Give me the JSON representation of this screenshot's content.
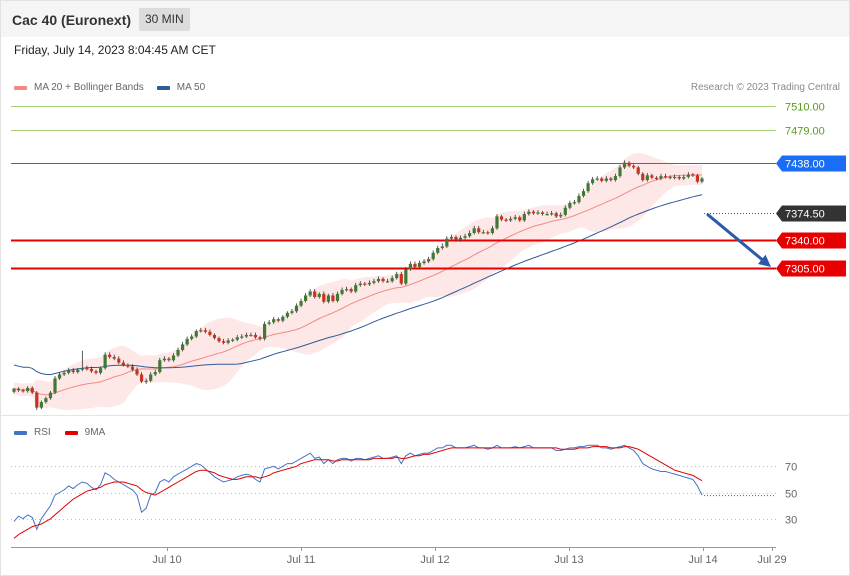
{
  "header": {
    "title": "Cac 40 (Euronext)",
    "timeframe": "30 MIN",
    "datetime": "Friday, July 14, 2023 8:04:45 AM CET"
  },
  "legend": {
    "main": [
      {
        "label": "MA 20 + Bollinger Bands",
        "color": "#f08b84"
      },
      {
        "label": "MA 50",
        "color": "#2e5c99"
      }
    ],
    "rsi": [
      {
        "label": "RSI",
        "color": "#4472c4"
      },
      {
        "label": "9MA",
        "color": "#e00000"
      }
    ]
  },
  "copyright": "Research © 2023 Trading Central",
  "chart_data": [
    {
      "type": "candlestick",
      "ylim": [
        7125,
        7530
      ],
      "x_ticks": [
        "Jul 10",
        "Jul 11",
        "Jul 12",
        "Jul 13",
        "Jul 14",
        "Jul 29"
      ],
      "levels": [
        {
          "value": 7510.0,
          "label": "7510.00",
          "color": "#8bc34a",
          "kind": "line"
        },
        {
          "value": 7479.0,
          "label": "7479.00",
          "color": "#8bc34a",
          "kind": "line"
        },
        {
          "value": 7438.0,
          "label": "7438.00",
          "color": "#1a6ef5",
          "kind": "box"
        },
        {
          "value": 7374.5,
          "label": "7374.50",
          "color": "#333333",
          "kind": "box"
        },
        {
          "value": 7340.0,
          "label": "7340.00",
          "color": "#e60000",
          "kind": "box"
        },
        {
          "value": 7305.0,
          "label": "7305.00",
          "color": "#e60000",
          "kind": "box"
        }
      ],
      "forecast_arrow": {
        "from": 7372,
        "to": 7306,
        "color": "#2a5aa8"
      },
      "close": [
        7152,
        7150,
        7149,
        7153,
        7147,
        7128,
        7135,
        7140,
        7147,
        7165,
        7170,
        7172,
        7175,
        7173,
        7176,
        7178,
        7177,
        7174,
        7172,
        7178,
        7195,
        7192,
        7190,
        7185,
        7182,
        7180,
        7176,
        7170,
        7161,
        7162,
        7170,
        7173,
        7188,
        7190,
        7188,
        7194,
        7201,
        7208,
        7215,
        7218,
        7225,
        7226,
        7224,
        7220,
        7216,
        7212,
        7210,
        7213,
        7214,
        7217,
        7218,
        7220,
        7220,
        7217,
        7215,
        7234,
        7236,
        7240,
        7238,
        7243,
        7248,
        7250,
        7257,
        7263,
        7270,
        7275,
        7268,
        7272,
        7262,
        7270,
        7263,
        7272,
        7277,
        7278,
        7275,
        7283,
        7285,
        7284,
        7286,
        7288,
        7291,
        7288,
        7288,
        7292,
        7297,
        7285,
        7303,
        7310,
        7306,
        7311,
        7313,
        7316,
        7324,
        7330,
        7332,
        7342,
        7344,
        7340,
        7343,
        7345,
        7349,
        7355,
        7350,
        7350,
        7349,
        7355,
        7370,
        7366,
        7365,
        7367,
        7369,
        7365,
        7373,
        7376,
        7374,
        7375,
        7373,
        7373,
        7374,
        7370,
        7372,
        7381,
        7387,
        7388,
        7396,
        7402,
        7412,
        7417,
        7418,
        7415,
        7418,
        7416,
        7421,
        7432,
        7438,
        7434,
        7432,
        7424,
        7416,
        7422,
        7419,
        7418,
        7421,
        7420,
        7419,
        7420,
        7418,
        7420,
        7423,
        7422,
        7414,
        7418
      ],
      "open": [
        7148,
        7152,
        7150,
        7149,
        7153,
        7147,
        7128,
        7135,
        7140,
        7147,
        7165,
        7170,
        7172,
        7175,
        7173,
        7176,
        7178,
        7177,
        7174,
        7172,
        7178,
        7195,
        7192,
        7190,
        7185,
        7182,
        7180,
        7176,
        7170,
        7161,
        7162,
        7170,
        7173,
        7188,
        7190,
        7188,
        7194,
        7201,
        7208,
        7215,
        7218,
        7225,
        7226,
        7224,
        7220,
        7216,
        7212,
        7210,
        7213,
        7214,
        7217,
        7218,
        7220,
        7220,
        7217,
        7215,
        7234,
        7236,
        7240,
        7238,
        7243,
        7248,
        7250,
        7257,
        7263,
        7270,
        7275,
        7268,
        7272,
        7262,
        7270,
        7263,
        7272,
        7277,
        7278,
        7275,
        7283,
        7285,
        7284,
        7286,
        7288,
        7291,
        7288,
        7288,
        7292,
        7297,
        7285,
        7303,
        7310,
        7306,
        7311,
        7313,
        7316,
        7324,
        7330,
        7332,
        7342,
        7344,
        7340,
        7343,
        7345,
        7349,
        7355,
        7350,
        7350,
        7349,
        7355,
        7370,
        7366,
        7365,
        7367,
        7369,
        7365,
        7373,
        7376,
        7374,
        7375,
        7373,
        7373,
        7374,
        7370,
        7372,
        7381,
        7387,
        7388,
        7396,
        7402,
        7412,
        7417,
        7418,
        7415,
        7418,
        7416,
        7421,
        7432,
        7438,
        7434,
        7432,
        7424,
        7416,
        7422,
        7419,
        7418,
        7421,
        7420,
        7419,
        7420,
        7418,
        7420,
        7423,
        7422,
        7414
      ],
      "high": [
        7153,
        7154,
        7152,
        7155,
        7155,
        7149,
        7137,
        7142,
        7149,
        7168,
        7173,
        7175,
        7178,
        7178,
        7178,
        7200,
        7181,
        7180,
        7176,
        7180,
        7198,
        7198,
        7195,
        7193,
        7188,
        7184,
        7183,
        7179,
        7173,
        7165,
        7173,
        7176,
        7191,
        7193,
        7192,
        7197,
        7204,
        7211,
        7218,
        7221,
        7227,
        7229,
        7229,
        7227,
        7222,
        7218,
        7215,
        7216,
        7216,
        7220,
        7221,
        7223,
        7223,
        7223,
        7219,
        7237,
        7239,
        7243,
        7242,
        7245,
        7250,
        7253,
        7260,
        7266,
        7273,
        7278,
        7278,
        7274,
        7275,
        7272,
        7273,
        7275,
        7280,
        7281,
        7280,
        7286,
        7288,
        7287,
        7289,
        7291,
        7294,
        7293,
        7291,
        7295,
        7300,
        7300,
        7306,
        7313,
        7313,
        7314,
        7316,
        7319,
        7327,
        7333,
        7336,
        7345,
        7347,
        7346,
        7346,
        7348,
        7352,
        7358,
        7358,
        7353,
        7352,
        7358,
        7373,
        7372,
        7368,
        7370,
        7372,
        7371,
        7376,
        7379,
        7378,
        7378,
        7377,
        7376,
        7377,
        7376,
        7375,
        7384,
        7390,
        7391,
        7399,
        7405,
        7415,
        7420,
        7421,
        7420,
        7421,
        7420,
        7424,
        7435,
        7441,
        7440,
        7436,
        7434,
        7426,
        7425,
        7424,
        7421,
        7424,
        7424,
        7422,
        7423,
        7422,
        7423,
        7426,
        7425,
        7424,
        7420
      ],
      "low": [
        7146,
        7148,
        7147,
        7147,
        7145,
        7125,
        7126,
        7133,
        7138,
        7145,
        7163,
        7168,
        7170,
        7171,
        7171,
        7174,
        7175,
        7172,
        7170,
        7170,
        7176,
        7190,
        7188,
        7183,
        7180,
        7178,
        7174,
        7168,
        7159,
        7158,
        7160,
        7168,
        7171,
        7186,
        7186,
        7186,
        7192,
        7199,
        7206,
        7213,
        7216,
        7223,
        7222,
        7218,
        7214,
        7210,
        7208,
        7208,
        7211,
        7212,
        7215,
        7216,
        7218,
        7215,
        7213,
        7213,
        7232,
        7234,
        7236,
        7236,
        7241,
        7246,
        7248,
        7255,
        7261,
        7268,
        7266,
        7266,
        7260,
        7260,
        7261,
        7261,
        7270,
        7275,
        7273,
        7273,
        7281,
        7282,
        7282,
        7284,
        7286,
        7286,
        7286,
        7286,
        7290,
        7283,
        7283,
        7301,
        7304,
        7304,
        7309,
        7311,
        7314,
        7322,
        7328,
        7330,
        7340,
        7338,
        7338,
        7341,
        7343,
        7347,
        7348,
        7348,
        7347,
        7347,
        7353,
        7364,
        7363,
        7363,
        7365,
        7363,
        7363,
        7371,
        7372,
        7372,
        7371,
        7371,
        7371,
        7368,
        7368,
        7370,
        7379,
        7385,
        7386,
        7394,
        7400,
        7410,
        7415,
        7413,
        7413,
        7414,
        7414,
        7419,
        7430,
        7432,
        7430,
        7422,
        7414,
        7414,
        7417,
        7416,
        7416,
        7418,
        7417,
        7417,
        7416,
        7416,
        7418,
        7420,
        7412,
        7412
      ]
    },
    {
      "type": "line",
      "ylim": [
        10,
        90
      ],
      "y_ticks": [
        30,
        50,
        70
      ],
      "series": [
        {
          "name": "RSI",
          "color": "#4472c4",
          "values": [
            28,
            32,
            30,
            33,
            31,
            22,
            30,
            35,
            40,
            48,
            50,
            52,
            55,
            53,
            56,
            58,
            57,
            54,
            52,
            56,
            65,
            63,
            60,
            58,
            56,
            54,
            52,
            48,
            35,
            38,
            48,
            50,
            58,
            60,
            58,
            62,
            64,
            66,
            68,
            70,
            72,
            71,
            68,
            65,
            62,
            60,
            58,
            59,
            60,
            62,
            63,
            64,
            63,
            60,
            58,
            68,
            69,
            70,
            68,
            70,
            72,
            72,
            74,
            76,
            78,
            80,
            76,
            77,
            72,
            75,
            72,
            75,
            76,
            76,
            74,
            76,
            76,
            75,
            76,
            77,
            78,
            76,
            76,
            77,
            78,
            72,
            78,
            80,
            78,
            79,
            80,
            80,
            82,
            84,
            84,
            86,
            86,
            84,
            84,
            84,
            85,
            86,
            84,
            84,
            83,
            84,
            86,
            84,
            84,
            84,
            85,
            84,
            85,
            86,
            84,
            84,
            84,
            84,
            84,
            82,
            82,
            83,
            84,
            84,
            85,
            85,
            86,
            86,
            86,
            84,
            84,
            83,
            84,
            85,
            86,
            84,
            82,
            78,
            72,
            70,
            68,
            67,
            66,
            66,
            65,
            64,
            63,
            62,
            61,
            60,
            55,
            48
          ]
        },
        {
          "name": "9MA",
          "color": "#e00000",
          "values": [
            15,
            18,
            20,
            22,
            24,
            25,
            26,
            28,
            30,
            33,
            36,
            39,
            42,
            45,
            47,
            49,
            51,
            52,
            53,
            54,
            56,
            57,
            58,
            58,
            58,
            57,
            56,
            55,
            52,
            50,
            49,
            48,
            50,
            52,
            54,
            56,
            58,
            60,
            62,
            64,
            66,
            67,
            67,
            66,
            65,
            63,
            62,
            61,
            60,
            60,
            61,
            62,
            62,
            62,
            61,
            62,
            63,
            65,
            66,
            67,
            68,
            69,
            70,
            72,
            73,
            74,
            75,
            75,
            75,
            75,
            74,
            74,
            75,
            75,
            75,
            75,
            75,
            75,
            75,
            76,
            76,
            76,
            76,
            76,
            77,
            76,
            76,
            77,
            78,
            78,
            79,
            79,
            80,
            81,
            82,
            83,
            84,
            84,
            84,
            84,
            84,
            84,
            84,
            84,
            84,
            84,
            84,
            84,
            84,
            84,
            84,
            84,
            84,
            84,
            84,
            84,
            84,
            84,
            84,
            84,
            83,
            83,
            83,
            83,
            84,
            84,
            84,
            85,
            85,
            85,
            85,
            84,
            84,
            84,
            85,
            85,
            84,
            83,
            81,
            79,
            77,
            75,
            73,
            71,
            69,
            67,
            66,
            65,
            64,
            63,
            61,
            59
          ]
        }
      ]
    }
  ]
}
